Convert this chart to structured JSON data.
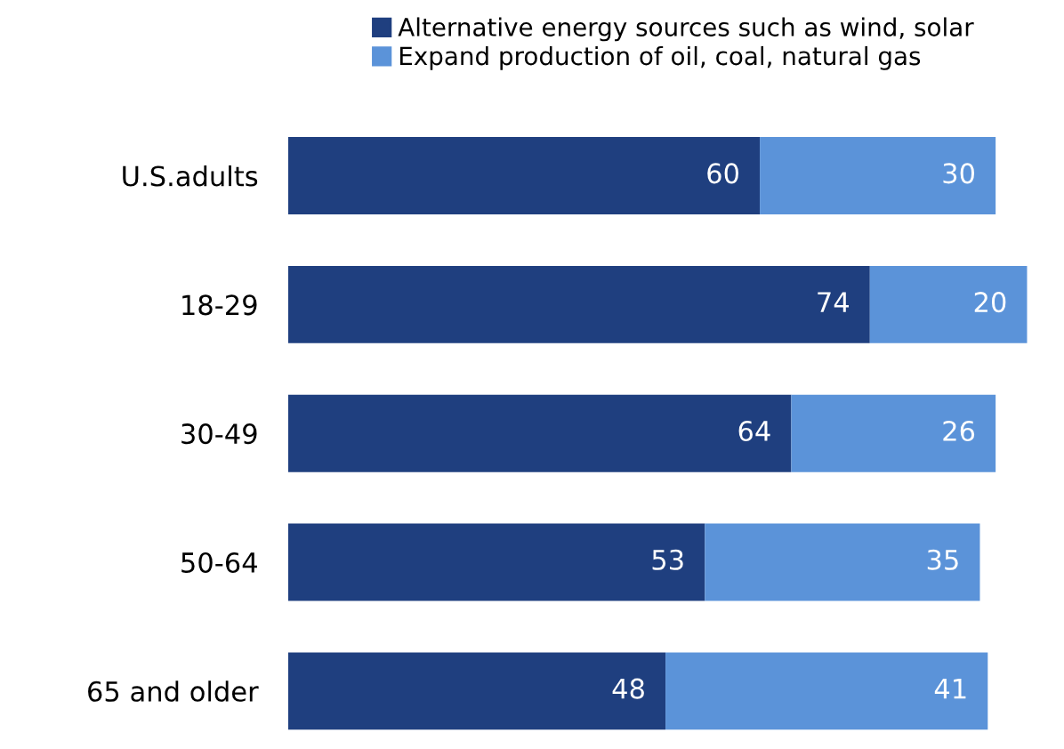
{
  "chart_data": {
    "type": "bar",
    "orientation": "horizontal",
    "stacked": true,
    "data_labels": true,
    "legend": "top left",
    "grid": false,
    "tick_labels": "y",
    "categories": [
      "U.S.adults",
      "18-29",
      "30-49",
      "50-64",
      "65 and older"
    ],
    "series": [
      {
        "name": "Alternative energy sources such as wind, solar",
        "color": "#1f3f7f",
        "values": [
          60,
          74,
          64,
          53,
          48
        ]
      },
      {
        "name": "Expand production of oil, coal, natural gas",
        "color": "#5b93d9",
        "values": [
          30,
          20,
          26,
          35,
          41
        ]
      }
    ]
  }
}
